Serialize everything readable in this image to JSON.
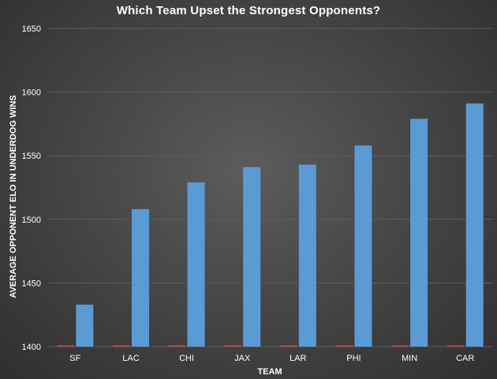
{
  "chart_data": {
    "type": "bar",
    "title": "Which Team Upset the Strongest Opponents?",
    "xlabel": "TEAM",
    "ylabel": "AVERAGE OPPONENT ELO IN UNDERDOG WINS",
    "categories": [
      "SF",
      "LAC",
      "CHI",
      "JAX",
      "LAR",
      "PHI",
      "MIN",
      "CAR"
    ],
    "series": [
      {
        "values": [
          1400,
          1400,
          1400,
          1400,
          1400,
          1400,
          1400,
          1400
        ],
        "color": "#c0504d"
      },
      {
        "values": [
          1433,
          1508,
          1529,
          1541,
          1543,
          1558,
          1579,
          1591
        ],
        "color": "#5b9bd5"
      }
    ],
    "ylim": [
      1400,
      1650
    ],
    "yticks": [
      1400,
      1450,
      1500,
      1550,
      1600,
      1650
    ],
    "grid": true,
    "gridline_color": "#5e5e5e",
    "legend": "none"
  }
}
